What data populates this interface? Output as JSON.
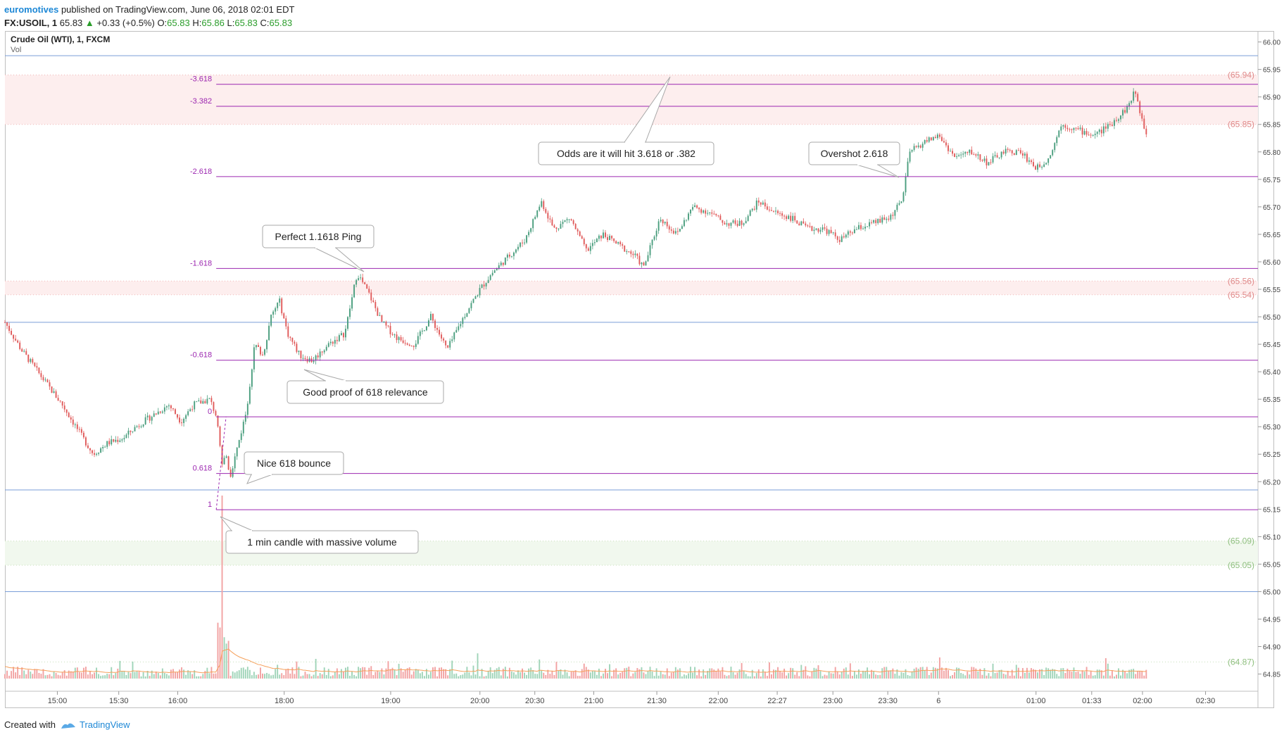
{
  "header": {
    "author": "euromotives",
    "published": "published on TradingView.com, June 06, 2018 02:01 EDT",
    "symbol": "FX:USOIL, 1",
    "last": "65.83",
    "change_arrow": "▲",
    "change": "+0.33 (+0.5%)",
    "o_label": "O:",
    "o": "65.83",
    "h_label": "H:",
    "h": "65.86",
    "l_label": "L:",
    "l": "65.83",
    "c_label": "C:",
    "c": "65.83"
  },
  "pane": {
    "title": "Crude Oil (WTI), 1, FXCM",
    "vol_label": "Vol"
  },
  "footer": {
    "created_with": "Created with",
    "brand": "TradingView"
  },
  "colors": {
    "up": "#4a9e7e",
    "down": "#e05a5a",
    "fib": "#9c27b0",
    "blue_line": "#7a9ed8",
    "red_zone": "#fdeeee",
    "green_zone": "#f1f8ee",
    "vol_up": "#9fd4b8",
    "vol_down": "#f2a2a2",
    "vol_ma": "#f5a05a"
  },
  "chart_data": {
    "type": "candlestick",
    "title": "Crude Oil (WTI), 1, FXCM",
    "ylim": [
      64.82,
      66.02
    ],
    "y_ticks": [
      "66.00",
      "65.95",
      "65.90",
      "65.85",
      "65.80",
      "65.75",
      "65.70",
      "65.65",
      "65.60",
      "65.55",
      "65.50",
      "65.45",
      "65.40",
      "65.35",
      "65.30",
      "65.25",
      "65.20",
      "65.15",
      "65.10",
      "65.05",
      "65.00",
      "64.95",
      "64.90",
      "64.85"
    ],
    "x_ticks": [
      {
        "label": "15:00",
        "slot": 64
      },
      {
        "label": "15:30",
        "slot": 139
      },
      {
        "label": "16:00",
        "slot": 211
      },
      {
        "label": "18:00",
        "slot": 341
      },
      {
        "label": "19:00",
        "slot": 471
      },
      {
        "label": "20:00",
        "slot": 580
      },
      {
        "label": "20:30",
        "slot": 647
      },
      {
        "label": "21:00",
        "slot": 719
      },
      {
        "label": "21:30",
        "slot": 796
      },
      {
        "label": "22:00",
        "slot": 871
      },
      {
        "label": "22:27",
        "slot": 943
      },
      {
        "label": "23:00",
        "slot": 1011
      },
      {
        "label": "23:30",
        "slot": 1078
      },
      {
        "label": "6",
        "slot": 1140
      },
      {
        "label": "01:00",
        "slot": 1259
      },
      {
        "label": "01:33",
        "slot": 1327
      },
      {
        "label": "02:00",
        "slot": 1389
      },
      {
        "label": "02:30",
        "slot": 1466
      }
    ],
    "price_path": [
      [
        0,
        65.49
      ],
      [
        20,
        65.44
      ],
      [
        45,
        65.39
      ],
      [
        70,
        65.34
      ],
      [
        95,
        65.28
      ],
      [
        108,
        65.25
      ],
      [
        125,
        65.27
      ],
      [
        145,
        65.28
      ],
      [
        160,
        65.3
      ],
      [
        180,
        65.32
      ],
      [
        200,
        65.34
      ],
      [
        215,
        65.31
      ],
      [
        230,
        65.34
      ],
      [
        250,
        65.35
      ],
      [
        258,
        65.32
      ],
      [
        262,
        65.27
      ],
      [
        265,
        65.23
      ],
      [
        270,
        65.25
      ],
      [
        275,
        65.21
      ],
      [
        285,
        65.27
      ],
      [
        295,
        65.33
      ],
      [
        305,
        65.45
      ],
      [
        315,
        65.43
      ],
      [
        325,
        65.5
      ],
      [
        335,
        65.53
      ],
      [
        345,
        65.47
      ],
      [
        360,
        65.43
      ],
      [
        375,
        65.42
      ],
      [
        395,
        65.45
      ],
      [
        415,
        65.47
      ],
      [
        430,
        65.58
      ],
      [
        445,
        65.54
      ],
      [
        460,
        65.49
      ],
      [
        480,
        65.46
      ],
      [
        500,
        65.45
      ],
      [
        520,
        65.5
      ],
      [
        540,
        65.44
      ],
      [
        560,
        65.5
      ],
      [
        580,
        65.55
      ],
      [
        595,
        65.58
      ],
      [
        615,
        65.61
      ],
      [
        635,
        65.64
      ],
      [
        655,
        65.71
      ],
      [
        670,
        65.66
      ],
      [
        690,
        65.68
      ],
      [
        710,
        65.62
      ],
      [
        730,
        65.65
      ],
      [
        750,
        65.63
      ],
      [
        770,
        65.61
      ],
      [
        780,
        65.59
      ],
      [
        800,
        65.68
      ],
      [
        820,
        65.65
      ],
      [
        840,
        65.7
      ],
      [
        860,
        65.69
      ],
      [
        880,
        65.67
      ],
      [
        900,
        65.67
      ],
      [
        920,
        65.71
      ],
      [
        940,
        65.69
      ],
      [
        960,
        65.68
      ],
      [
        980,
        65.66
      ],
      [
        1000,
        65.66
      ],
      [
        1020,
        65.64
      ],
      [
        1040,
        65.66
      ],
      [
        1060,
        65.67
      ],
      [
        1080,
        65.68
      ],
      [
        1095,
        65.71
      ],
      [
        1105,
        65.8
      ],
      [
        1125,
        65.82
      ],
      [
        1140,
        65.83
      ],
      [
        1160,
        65.79
      ],
      [
        1180,
        65.8
      ],
      [
        1200,
        65.78
      ],
      [
        1220,
        65.8
      ],
      [
        1240,
        65.8
      ],
      [
        1260,
        65.77
      ],
      [
        1275,
        65.79
      ],
      [
        1290,
        65.85
      ],
      [
        1310,
        65.84
      ],
      [
        1330,
        65.83
      ],
      [
        1350,
        65.85
      ],
      [
        1370,
        65.88
      ],
      [
        1380,
        65.91
      ],
      [
        1390,
        65.85
      ],
      [
        1395,
        65.83
      ]
    ],
    "price_labels": [
      {
        "label": "(65.94)",
        "price": 65.94,
        "zone": "red"
      },
      {
        "label": "(65.85)",
        "price": 65.85,
        "zone": "red"
      },
      {
        "label": "(65.56)",
        "price": 65.565,
        "zone": "red"
      },
      {
        "label": "(65.54)",
        "price": 65.54,
        "zone": "red"
      },
      {
        "label": "(65.09)",
        "price": 65.092,
        "zone": "green"
      },
      {
        "label": "(65.05)",
        "price": 65.048,
        "zone": "green"
      },
      {
        "label": "(64.87)",
        "price": 64.872,
        "zone": "green"
      }
    ],
    "blue_lines": [
      65.975,
      65.49,
      65.185,
      65.0
    ],
    "fib_levels": [
      {
        "label": "-3.618",
        "price": 65.923
      },
      {
        "label": "-3.382",
        "price": 65.883
      },
      {
        "label": "-2.618",
        "price": 65.755
      },
      {
        "label": "-1.618",
        "price": 65.588
      },
      {
        "label": "-0.618",
        "price": 65.421
      },
      {
        "label": "0",
        "price": 65.318
      },
      {
        "label": "0.618",
        "price": 65.215
      },
      {
        "label": "1",
        "price": 65.149
      }
    ],
    "annotations": [
      {
        "text": "Odds are it will hit 3.618 or .382"
      },
      {
        "text": "Overshot 2.618"
      },
      {
        "text": "Perfect 1.1618 Ping"
      },
      {
        "text": "Good proof of 618 relevance"
      },
      {
        "text": "Nice 618 bounce"
      },
      {
        "text": "1 min candle with massive volume"
      }
    ]
  }
}
